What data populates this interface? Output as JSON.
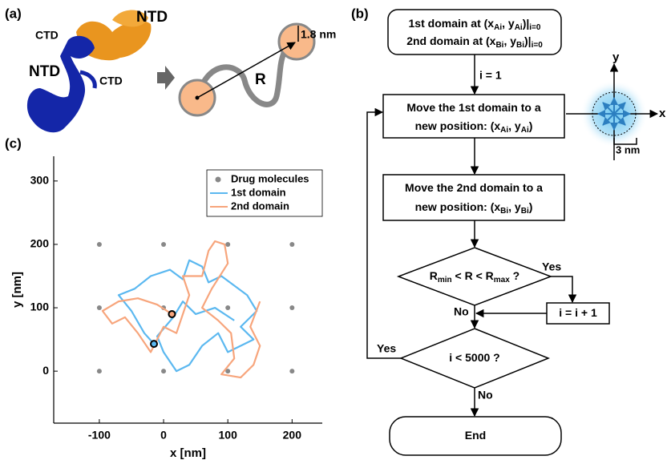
{
  "panel_labels": [
    "(a)",
    "(b)",
    "(c)"
  ],
  "panel_a": {
    "labels": [
      "NTD",
      "CTD",
      "CTD",
      "NTD"
    ],
    "distance": "R",
    "radius": "1.8 nm"
  },
  "flowchart": {
    "nodes": [
      {
        "lines": [
          [
            "1st domain at (x",
            "Ai",
            ", y",
            "Ai",
            ")|",
            "i=0"
          ],
          [
            "2nd domain at (x",
            "Bi",
            ", y",
            "Bi",
            ")|",
            "i=0"
          ]
        ]
      },
      {
        "lines": [
          [
            "Move the 1st domain to a"
          ],
          [
            "new position: (x",
            "Ai",
            ", y",
            "Ai",
            ")"
          ]
        ]
      },
      {
        "lines": [
          [
            "Move the 2nd domain to a"
          ],
          [
            "new position: (x",
            "Bi",
            ", y",
            "Bi",
            ")"
          ]
        ]
      },
      {
        "lines": [
          [
            "R",
            "min",
            " < R < R",
            "max",
            " ?"
          ]
        ]
      },
      {
        "lines": [
          [
            "i = i + 1"
          ]
        ]
      },
      {
        "lines": [
          [
            "i < 5000 ?"
          ]
        ]
      },
      {
        "lines": [
          [
            "End"
          ]
        ]
      }
    ],
    "edges": [
      "i = 1",
      "Yes",
      "No",
      "Yes",
      "No"
    ]
  },
  "inset": {
    "x_axis": "x",
    "y_axis": "y",
    "scale": "3 nm"
  },
  "chart_data": {
    "type": "line",
    "xlabel": "x [nm]",
    "ylabel": "y [nm]",
    "xlim": [
      -171,
      247
    ],
    "ylim": [
      -82,
      339
    ],
    "xticks": [
      -100,
      0,
      100,
      200
    ],
    "yticks": [
      0,
      100,
      200,
      300
    ],
    "grid": false,
    "legend": "upper right",
    "series": [
      {
        "name": "Drug molecules",
        "color": "#888888",
        "mode": "markers",
        "x": [
          -100,
          0,
          100,
          200,
          -100,
          0,
          100,
          200,
          -100,
          0,
          100,
          200
        ],
        "values": [
          0,
          0,
          0,
          0,
          100,
          100,
          100,
          100,
          200,
          200,
          200,
          200
        ]
      },
      {
        "name": "1st domain",
        "color": "#5bb8f0",
        "mode": "lines",
        "x": [
          -15,
          -30,
          -50,
          -70,
          -45,
          -20,
          10,
          30,
          40,
          60,
          70,
          90,
          110,
          130,
          145,
          120,
          140,
          100,
          85,
          60,
          40,
          20,
          0,
          -10,
          15,
          30,
          50,
          80,
          110
        ],
        "values": [
          43,
          60,
          95,
          120,
          130,
          150,
          160,
          145,
          175,
          165,
          140,
          150,
          135,
          120,
          95,
          70,
          50,
          30,
          60,
          40,
          10,
          0,
          30,
          55,
          85,
          110,
          90,
          100,
          80
        ]
      },
      {
        "name": "2nd domain",
        "color": "#f7a57c",
        "mode": "lines",
        "x": [
          13,
          -10,
          -40,
          -70,
          -95,
          -80,
          -60,
          -40,
          -20,
          0,
          20,
          40,
          30,
          60,
          70,
          80,
          95,
          100,
          75,
          60,
          85,
          105,
          110,
          90,
          120,
          140,
          150,
          135,
          150
        ],
        "values": [
          90,
          105,
          115,
          110,
          95,
          75,
          85,
          60,
          30,
          70,
          60,
          120,
          150,
          150,
          190,
          205,
          200,
          170,
          130,
          100,
          80,
          60,
          20,
          -5,
          -10,
          10,
          40,
          70,
          110
        ]
      }
    ]
  }
}
